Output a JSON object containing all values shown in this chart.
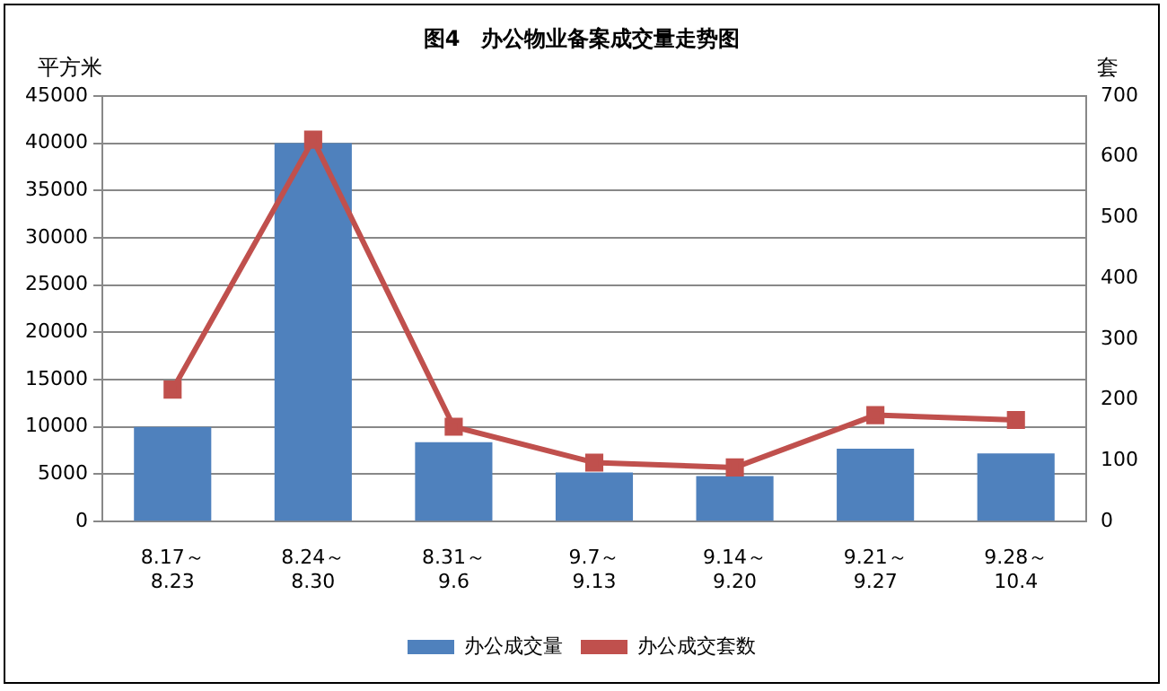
{
  "chart_data": {
    "type": "bar",
    "title": "图4　办公物业备案成交量走势图",
    "categories": [
      "8.17～\n8.23",
      "8.24～\n8.30",
      "8.31～\n9.6",
      "9.7～\n9.13",
      "9.14～\n9.20",
      "9.21～\n9.27",
      "9.28～\n10.4"
    ],
    "series": [
      {
        "name": "办公成交量",
        "color": "#4f81bd",
        "values": [
          10000,
          40000,
          8400,
          5200,
          4800,
          7700,
          7200
        ]
      },
      {
        "name": "办公成交套数",
        "type": "line",
        "axis": "y2",
        "color": "#c0504d",
        "values": [
          217,
          628,
          156,
          97,
          89,
          175,
          167
        ]
      }
    ],
    "ylabel": "平方米",
    "y2label": "套",
    "ylim": [
      0,
      45000
    ],
    "yticks": [
      0,
      5000,
      10000,
      15000,
      20000,
      25000,
      30000,
      35000,
      40000,
      45000
    ],
    "y2lim": [
      0,
      700
    ],
    "y2ticks": [
      0,
      100,
      200,
      300,
      400,
      500,
      600,
      700
    ],
    "grid": "y",
    "legend": "bottom",
    "marker": "square",
    "line_style": "solid"
  }
}
